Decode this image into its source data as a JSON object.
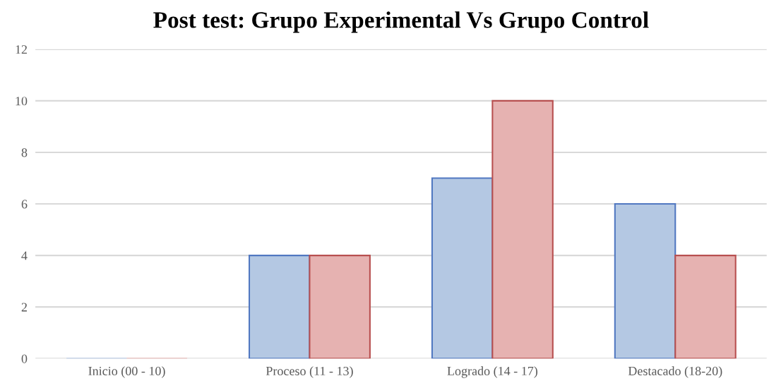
{
  "chart_data": {
    "type": "bar",
    "title": "Post test: Grupo Experimental Vs Grupo Control",
    "categories": [
      "Inicio (00 - 10)",
      "Proceso (11 - 13)",
      "Logrado (14 - 17)",
      "Destacado (18-20)"
    ],
    "series": [
      {
        "color": "#b4c8e3",
        "values": [
          0,
          4,
          7,
          6
        ]
      },
      {
        "color": "#e6b2b1",
        "values": [
          0,
          4,
          10,
          4
        ]
      }
    ],
    "ylim": [
      0,
      12
    ],
    "yticks": [
      0,
      2,
      4,
      6,
      8,
      10,
      12
    ],
    "grid": "y"
  }
}
